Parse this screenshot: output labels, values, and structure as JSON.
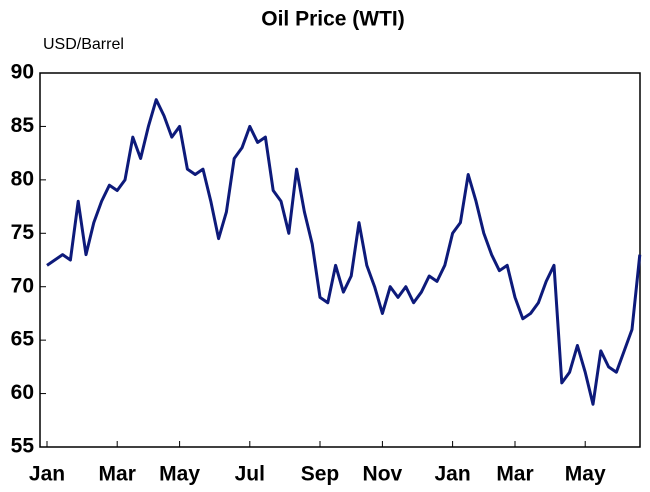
{
  "chart_data": {
    "type": "line",
    "title": "Oil Price (WTI)",
    "y_label": "USD/Barrel",
    "categories": [
      "Jan",
      null,
      null,
      null,
      null,
      null,
      null,
      null,
      null,
      "Mar",
      null,
      null,
      null,
      null,
      null,
      null,
      null,
      "May",
      null,
      null,
      null,
      null,
      null,
      null,
      null,
      null,
      "Jul",
      null,
      null,
      null,
      null,
      null,
      null,
      null,
      null,
      "Sep",
      null,
      null,
      null,
      null,
      null,
      null,
      null,
      "Nov",
      null,
      null,
      null,
      null,
      null,
      null,
      null,
      null,
      "Jan",
      null,
      null,
      null,
      null,
      null,
      null,
      null,
      "Mar",
      null,
      null,
      null,
      null,
      null,
      null,
      null,
      null,
      "May",
      null,
      null,
      null,
      null,
      null,
      null,
      null
    ],
    "series": [
      {
        "name": "WTI",
        "color": "#0d1a7a",
        "values": [
          72,
          72.5,
          73,
          72.5,
          78,
          73,
          76,
          78,
          79.5,
          79,
          80,
          84,
          82,
          85,
          87.5,
          86,
          84,
          85,
          81,
          80.5,
          81,
          78,
          74.5,
          77,
          82,
          83,
          85,
          83.5,
          84,
          79,
          78,
          75,
          81,
          77,
          74,
          69,
          68.5,
          72,
          69.5,
          71,
          76,
          72,
          70,
          67.5,
          70,
          69,
          70,
          68.5,
          69.5,
          71,
          70.5,
          72,
          75,
          76,
          80.5,
          78,
          75,
          73,
          71.5,
          72,
          69,
          67,
          67.5,
          68.5,
          70.5,
          72,
          61,
          62,
          64.5,
          62,
          59,
          64,
          62.5,
          62,
          64,
          66,
          73
        ]
      }
    ],
    "ylim": [
      55,
      90
    ],
    "yticks": [
      55,
      60,
      65,
      70,
      75,
      80,
      85,
      90
    ]
  }
}
